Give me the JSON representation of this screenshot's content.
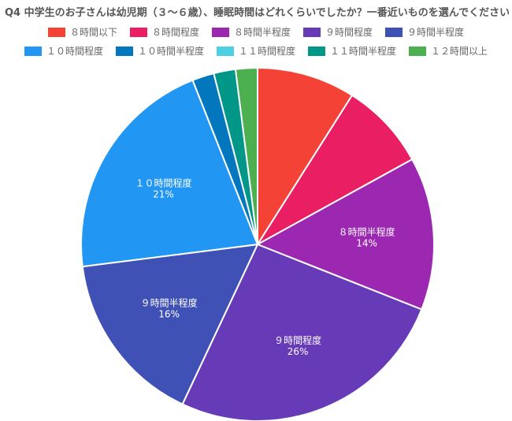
{
  "title": "Q4 中学生のお子さんは幼児期（３〜６歳）、睡眠時間はどれくらいでしたか？一番近いものを選んでください。",
  "chart_data": {
    "type": "pie",
    "title": "Q4 中学生のお子さんは幼児期（３〜６歳）、睡眠時間はどれくらいでしたか？一番近いものを選んでください。",
    "legend_position": "top",
    "categories": [
      "８時間以下",
      "８時間程度",
      "８時間半程度",
      "９時間程度",
      "９時間半程度",
      "１０時間程度",
      "１０時間半程度",
      "１１時間程度",
      "１１時間半程度",
      "１２時間以上"
    ],
    "values": [
      9,
      8,
      14,
      26,
      16,
      21,
      2,
      0,
      2,
      2
    ],
    "colors": [
      "#f44336",
      "#e91e63",
      "#9c27b0",
      "#673ab7",
      "#3f51b5",
      "#2196f3",
      "#0277bd",
      "#4dd0e1",
      "#009688",
      "#4caf50"
    ],
    "slice_labels": [
      {
        "index": 2,
        "label": "８時間半程度",
        "value": "14%"
      },
      {
        "index": 3,
        "label": "９時間程度",
        "value": "26%"
      },
      {
        "index": 4,
        "label": "９時間半程度",
        "value": "16%"
      },
      {
        "index": 5,
        "label": "１０時間程度",
        "value": "21%"
      }
    ]
  }
}
